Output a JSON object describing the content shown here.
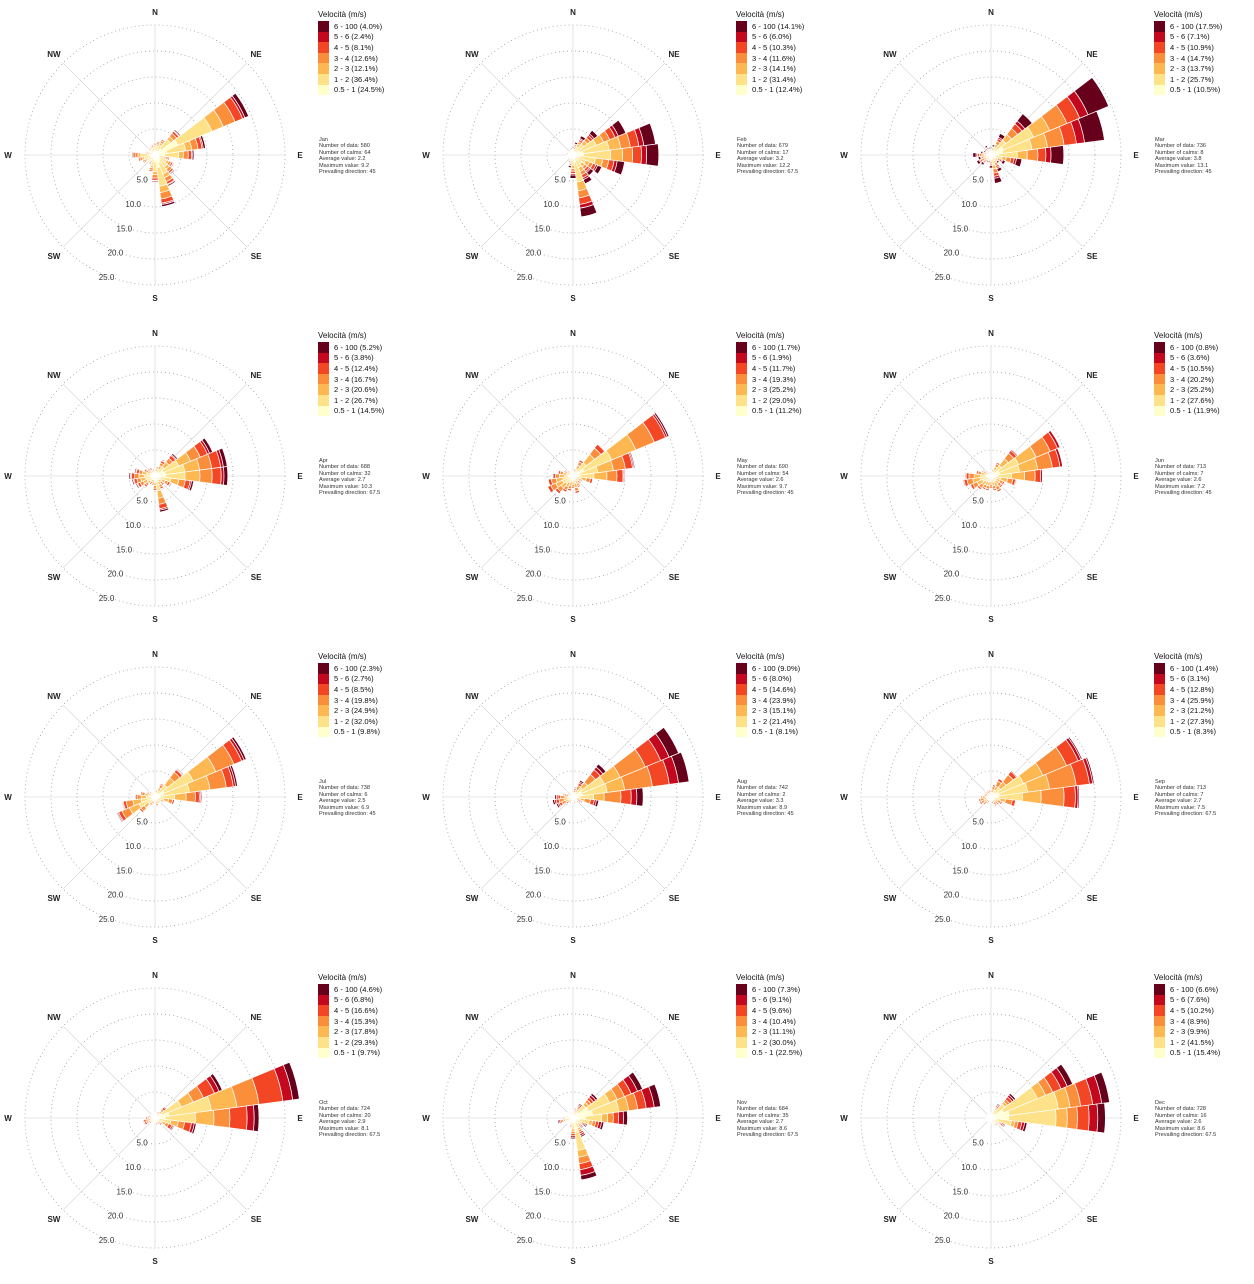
{
  "legend_title": "Velocità (m/s)",
  "bin_labels": [
    "6 - 100",
    "5 - 6",
    "4 - 5",
    "3 - 4",
    "2 - 3",
    "1 - 2",
    "0.5 - 1"
  ],
  "bin_colors": [
    "#67001a",
    "#c4081e",
    "#f24625",
    "#fb8e3b",
    "#fdb852",
    "#fde28a",
    "#ffffcc"
  ],
  "directions": [
    "N",
    "NE",
    "E",
    "SE",
    "S",
    "SW",
    "W",
    "NW"
  ],
  "ring_labels": [
    "5.0",
    "10.0",
    "15.0",
    "20.0",
    "25.0"
  ],
  "stat_labels": [
    "Number of data:",
    "Number of calms:",
    "Average value:",
    "Maximum value:",
    "Prevailing direction:"
  ],
  "chart_data": [
    {
      "type": "windrose",
      "title": "Jan",
      "legend_pct": [
        "4.0%",
        "2.4%",
        "8.1%",
        "12.6%",
        "12.1%",
        "36.4%",
        "24.5%"
      ],
      "number_of_data": "580",
      "number_of_calms": "64",
      "average_value": "2.2",
      "maximum_value": "9.2",
      "prevailing_direction": "45",
      "sector_totals": [
        2.5,
        2.8,
        3.5,
        6.2,
        19.5,
        9.8,
        7.5,
        3.0,
        4.0,
        4.8,
        6.5,
        10.0,
        5.2,
        3.5,
        2.2,
        1.8,
        2.8,
        3.5,
        4.5,
        2.0,
        1.5,
        1.8,
        2.0,
        2.2
      ],
      "rmax": 25
    },
    {
      "type": "windrose",
      "title": "Feb",
      "legend_pct": [
        "14.1%",
        "6.0%",
        "10.3%",
        "11.6%",
        "14.1%",
        "31.4%",
        "12.4%"
      ],
      "number_of_data": "679",
      "number_of_calms": "17",
      "average_value": "3.2",
      "maximum_value": "12.2",
      "prevailing_direction": "67.5",
      "sector_totals": [
        1.5,
        2.5,
        4.0,
        6.0,
        11.0,
        16.0,
        16.5,
        10.0,
        6.0,
        5.0,
        6.0,
        12.0,
        4.5,
        2.5,
        1.5,
        1.0,
        0.8,
        0.8,
        1.0,
        1.2,
        1.0,
        1.0,
        1.2,
        1.3
      ],
      "rmax": 25
    },
    {
      "type": "windrose",
      "title": "Mar",
      "legend_pct": [
        "17.5%",
        "7.1%",
        "10.9%",
        "14.7%",
        "13.7%",
        "25.7%",
        "10.5%"
      ],
      "number_of_data": "736",
      "number_of_calms": "8",
      "average_value": "3.8",
      "maximum_value": "13.1",
      "prevailing_direction": "45",
      "sector_totals": [
        1.5,
        2.0,
        4.5,
        10.0,
        24.5,
        22.0,
        14.0,
        6.0,
        3.0,
        2.0,
        3.5,
        5.5,
        2.5,
        1.5,
        1.5,
        2.5,
        3.0,
        2.5,
        3.5,
        2.0,
        1.5,
        1.5,
        2.0,
        1.5
      ],
      "rmax": 25
    },
    {
      "type": "windrose",
      "title": "Apr",
      "legend_pct": [
        "5.2%",
        "3.8%",
        "12.4%",
        "16.7%",
        "20.6%",
        "26.7%",
        "14.5%"
      ],
      "number_of_data": "688",
      "number_of_calms": "32",
      "average_value": "2.7",
      "maximum_value": "10.3",
      "prevailing_direction": "67.5",
      "sector_totals": [
        1.5,
        2.0,
        3.5,
        5.5,
        12.0,
        14.0,
        14.0,
        7.5,
        3.5,
        2.5,
        3.0,
        7.0,
        3.0,
        2.0,
        2.0,
        3.0,
        4.0,
        4.5,
        5.0,
        4.0,
        2.5,
        2.0,
        2.0,
        1.5
      ],
      "rmax": 25
    },
    {
      "type": "windrose",
      "title": "May",
      "legend_pct": [
        "1.7%",
        "1.9%",
        "11.7%",
        "19.3%",
        "25.2%",
        "29.0%",
        "11.2%"
      ],
      "number_of_data": "690",
      "number_of_calms": "54",
      "average_value": "2.6",
      "maximum_value": "9.7",
      "prevailing_direction": "45",
      "sector_totals": [
        1.0,
        1.5,
        3.5,
        8.0,
        20.0,
        12.0,
        10.0,
        4.0,
        2.0,
        2.0,
        2.5,
        3.5,
        2.5,
        3.0,
        3.5,
        4.5,
        5.5,
        5.0,
        4.0,
        3.0,
        2.0,
        1.5,
        1.0,
        1.0
      ],
      "rmax": 25
    },
    {
      "type": "windrose",
      "title": "Jun",
      "legend_pct": [
        "0.8%",
        "3.6%",
        "10.5%",
        "20.2%",
        "25.2%",
        "27.6%",
        "11.9%"
      ],
      "number_of_data": "713",
      "number_of_calms": "7",
      "average_value": "2.6",
      "maximum_value": "7.2",
      "prevailing_direction": "45",
      "sector_totals": [
        1.0,
        1.5,
        3.0,
        6.5,
        14.5,
        14.0,
        10.0,
        5.0,
        3.0,
        3.0,
        3.5,
        3.0,
        2.5,
        3.0,
        3.0,
        3.5,
        4.5,
        5.5,
        5.0,
        3.0,
        2.0,
        1.5,
        1.0,
        1.0
      ],
      "rmax": 25
    },
    {
      "type": "windrose",
      "title": "Jul",
      "legend_pct": [
        "2.3%",
        "2.7%",
        "8.5%",
        "19.8%",
        "24.9%",
        "32.0%",
        "9.8%"
      ],
      "number_of_data": "738",
      "number_of_calms": "6",
      "average_value": "2.5",
      "maximum_value": "6.9",
      "prevailing_direction": "45",
      "sector_totals": [
        1.0,
        1.5,
        3.0,
        7.0,
        19.0,
        16.0,
        9.0,
        4.0,
        2.0,
        1.5,
        1.5,
        2.0,
        1.5,
        1.5,
        2.0,
        4.0,
        8.0,
        6.5,
        4.0,
        3.0,
        2.0,
        1.5,
        1.0,
        1.0
      ],
      "rmax": 25
    },
    {
      "type": "windrose",
      "title": "Aug",
      "legend_pct": [
        "9.0%",
        "8.0%",
        "14.6%",
        "23.9%",
        "15.1%",
        "21.4%",
        "8.1%"
      ],
      "number_of_data": "742",
      "number_of_calms": "2",
      "average_value": "3.3",
      "maximum_value": "8.9",
      "prevailing_direction": "45",
      "sector_totals": [
        1.5,
        2.0,
        3.5,
        8.0,
        22.0,
        22.5,
        13.5,
        5.0,
        2.0,
        1.0,
        1.0,
        1.5,
        1.0,
        1.0,
        1.5,
        2.0,
        3.5,
        4.0,
        3.5,
        2.0,
        1.5,
        1.5,
        1.0,
        1.0
      ],
      "rmax": 25
    },
    {
      "type": "windrose",
      "title": "Sep",
      "legend_pct": [
        "1.4%",
        "3.1%",
        "12.8%",
        "25.9%",
        "21.2%",
        "27.3%",
        "8.3%"
      ],
      "number_of_data": "713",
      "number_of_calms": "7",
      "average_value": "2.7",
      "maximum_value": "7.5",
      "prevailing_direction": "67.5",
      "sector_totals": [
        1.5,
        2.5,
        4.0,
        6.5,
        19.0,
        20.0,
        17.0,
        5.0,
        2.5,
        2.0,
        2.0,
        1.5,
        1.0,
        1.0,
        1.5,
        2.0,
        2.5,
        2.5,
        2.0,
        1.5,
        1.5,
        1.5,
        1.5,
        1.5
      ],
      "rmax": 25
    },
    {
      "type": "windrose",
      "title": "Oct",
      "legend_pct": [
        "4.6%",
        "6.8%",
        "16.6%",
        "15.3%",
        "17.8%",
        "29.3%",
        "9.7%"
      ],
      "number_of_data": "724",
      "number_of_calms": "20",
      "average_value": "2.9",
      "maximum_value": "8.1",
      "prevailing_direction": "67.5",
      "sector_totals": [
        1.0,
        1.0,
        1.5,
        3.0,
        14.0,
        28.0,
        20.0,
        8.0,
        4.0,
        2.0,
        1.5,
        1.5,
        1.0,
        1.0,
        1.0,
        1.5,
        2.5,
        2.5,
        2.0,
        1.5,
        1.0,
        1.0,
        1.0,
        1.0
      ],
      "rmax": 25
    },
    {
      "type": "windrose",
      "title": "Nov",
      "legend_pct": [
        "7.3%",
        "9.1%",
        "9.6%",
        "10.4%",
        "11.1%",
        "30.0%",
        "22.5%"
      ],
      "number_of_data": "684",
      "number_of_calms": "35",
      "average_value": "2.7",
      "maximum_value": "8.6",
      "prevailing_direction": "67.5",
      "sector_totals": [
        1.5,
        2.0,
        3.0,
        6.0,
        14.5,
        17.0,
        10.5,
        6.0,
        3.0,
        2.5,
        4.0,
        12.0,
        4.0,
        2.0,
        1.5,
        1.5,
        1.5,
        3.0,
        2.0,
        1.5,
        1.0,
        1.5,
        1.5,
        1.5
      ],
      "rmax": 25
    },
    {
      "type": "windrose",
      "title": "Dec",
      "legend_pct": [
        "6.6%",
        "7.6%",
        "10.2%",
        "8.9%",
        "9.9%",
        "41.5%",
        "15.4%"
      ],
      "number_of_data": "728",
      "number_of_calms": "16",
      "average_value": "2.6",
      "maximum_value": "8.6",
      "prevailing_direction": "67.5",
      "sector_totals": [
        1.0,
        1.5,
        3.0,
        6.0,
        17.0,
        23.0,
        22.0,
        7.0,
        3.0,
        2.0,
        2.0,
        1.5,
        1.0,
        1.0,
        1.0,
        1.0,
        1.0,
        1.0,
        1.0,
        1.0,
        1.0,
        1.0,
        1.0,
        1.0
      ],
      "rmax": 25
    }
  ]
}
